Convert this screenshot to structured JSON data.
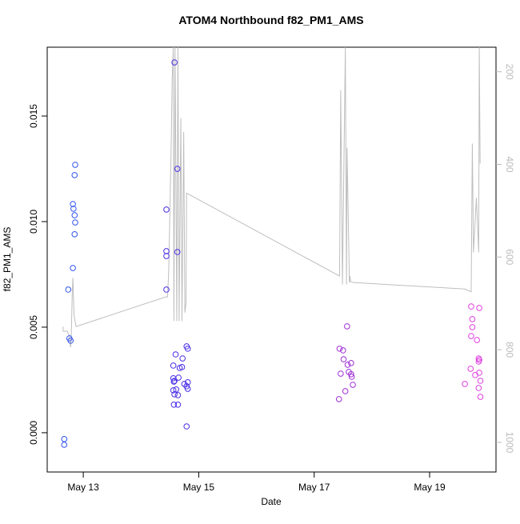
{
  "chart_data": {
    "type": "scatter",
    "title": "ATOM4 Northbound f82_PM1_AMS",
    "x_label": "Date",
    "y_label": "f82_PM1_AMS",
    "xlim": [
      12.375,
      20.15
    ],
    "xticks": [
      {
        "value": 13,
        "label": "May 13"
      },
      {
        "value": 15,
        "label": "May 15"
      },
      {
        "value": 17,
        "label": "May 17"
      },
      {
        "value": 19,
        "label": "May 19"
      }
    ],
    "ylim": [
      -0.00186,
      0.01826
    ],
    "yticks": [
      {
        "value": 0,
        "label": "0.000"
      },
      {
        "value": 0.005,
        "label": "0.005"
      },
      {
        "value": 0.01,
        "label": "0.010"
      },
      {
        "value": 0.015,
        "label": "0.015"
      }
    ],
    "y2lim": [
      1064,
      147
    ],
    "y2ticks": [
      200,
      400,
      600,
      800,
      1000
    ],
    "series": [
      {
        "type": "scatter",
        "color": "#3355ee",
        "x": [
          12.67,
          12.67,
          12.74,
          12.76,
          12.78,
          12.82,
          12.82,
          12.83,
          12.85,
          12.86,
          12.85,
          12.85,
          12.86
        ],
        "values": [
          -0.0003,
          -0.00057,
          0.00678,
          0.00447,
          0.00436,
          0.0078,
          0.01083,
          0.01061,
          0.0103,
          0.00996,
          0.0094,
          0.0122,
          0.01269
        ]
      },
      {
        "type": "scatter",
        "color": "#4a2fe6",
        "x": [
          14.44,
          14.44,
          14.44,
          14.44,
          14.58,
          14.63,
          14.63,
          14.56,
          14.6,
          14.56,
          14.57,
          14.58,
          14.61,
          14.56,
          14.58,
          14.64,
          14.65,
          14.67,
          14.71,
          14.72,
          14.64,
          14.57,
          14.79,
          14.81,
          14.75,
          14.79,
          14.81,
          14.81,
          14.79
        ],
        "values": [
          0.01057,
          0.0086,
          0.00837,
          0.00678,
          0.01754,
          0.0125,
          0.00856,
          0.00318,
          0.00371,
          0.00258,
          0.00242,
          0.00246,
          0.00205,
          0.00201,
          0.00182,
          0.00178,
          0.00261,
          0.00307,
          0.00311,
          0.00352,
          0.00133,
          0.00133,
          0.00409,
          0.00398,
          0.00231,
          0.0022,
          0.00239,
          0.00208,
          0.0003
        ]
      },
      {
        "type": "scatter",
        "color": "#a030d8",
        "x": [
          17.57,
          17.44,
          17.5,
          17.51,
          17.58,
          17.64,
          17.46,
          17.6,
          17.64,
          17.65,
          17.67,
          17.54,
          17.43
        ],
        "values": [
          0.00504,
          0.00398,
          0.0039,
          0.00348,
          0.00322,
          0.0033,
          0.0028,
          0.00288,
          0.00277,
          0.00265,
          0.00227,
          0.00197,
          0.00159
        ]
      },
      {
        "type": "scatter",
        "color": "#e040e0",
        "x": [
          19.72,
          19.86,
          19.74,
          19.74,
          19.72,
          19.82,
          19.85,
          19.86,
          19.85,
          19.71,
          19.79,
          19.86,
          19.88,
          19.61,
          19.85,
          19.88
        ],
        "values": [
          0.00598,
          0.00591,
          0.00538,
          0.005,
          0.00458,
          0.00439,
          0.00352,
          0.00345,
          0.00337,
          0.00303,
          0.00273,
          0.00284,
          0.00246,
          0.00231,
          0.00212,
          0.0017
        ]
      },
      {
        "type": "line",
        "color": "#bebebe",
        "axis": "y2",
        "x": [
          12.65,
          12.65,
          12.72,
          12.76,
          12.78,
          12.79,
          12.81,
          12.82,
          12.84,
          12.875,
          14.43,
          14.46,
          14.48,
          14.52,
          14.54,
          14.56,
          14.57,
          14.59,
          14.62,
          14.64,
          14.66,
          14.69,
          14.71,
          14.74,
          14.76,
          14.78,
          14.79,
          17.44,
          17.46,
          17.49,
          17.54,
          17.56,
          17.57,
          17.61,
          17.62,
          17.63,
          17.68,
          19.61,
          19.72,
          19.74,
          19.76,
          19.81,
          19.85,
          19.86,
          19.875
        ],
        "values": [
          750,
          760,
          760,
          770,
          795,
          780,
          674,
          645,
          726,
          750,
          686,
          686,
          631,
          380,
          217,
          147,
          738,
          147,
          738,
          147,
          738,
          300,
          738,
          330,
          720,
          700,
          462,
          641,
          240,
          659,
          147,
          659,
          364,
          655,
          641,
          653,
          655,
          669,
          675,
          355,
          590,
          472,
          590,
          147,
          398
        ]
      }
    ]
  }
}
